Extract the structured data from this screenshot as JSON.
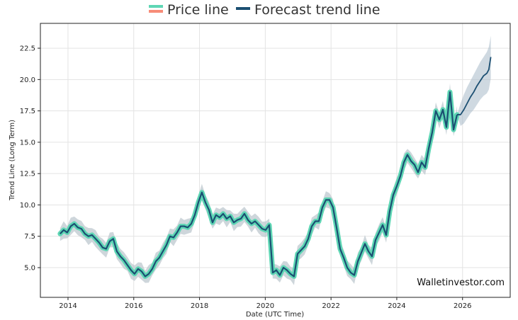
{
  "chart_data": {
    "type": "line",
    "title": "",
    "xlabel": "Date (UTC Time)",
    "ylabel": "Trend Line (Long Term)",
    "xlim": [
      2013.16,
      2027.45
    ],
    "ylim": [
      2.63,
      24.48
    ],
    "grid": true,
    "legend_placement": "top-center",
    "x_ticks": [
      2014,
      2016,
      2018,
      2020,
      2022,
      2024,
      2026
    ],
    "x_tick_labels": [
      "2014",
      "2016",
      "2018",
      "2020",
      "2022",
      "2024",
      "2026"
    ],
    "y_ticks": [
      5.0,
      7.5,
      10.0,
      12.5,
      15.0,
      17.5,
      20.0,
      22.5
    ],
    "y_tick_labels": [
      "5.0",
      "7.5",
      "10.0",
      "12.5",
      "15.0",
      "17.5",
      "20.0",
      "22.5"
    ],
    "legend": [
      {
        "label": "Price line",
        "colors": [
          "#5ed6b4",
          "#f78c78"
        ]
      },
      {
        "label": "Forecast trend line",
        "colors": [
          "#1b4f72"
        ]
      }
    ],
    "series": [
      {
        "name": "Price line",
        "x_start": 2013.76,
        "x_step": 0.1078,
        "values": [
          7.7,
          8.0,
          7.8,
          8.3,
          8.5,
          8.2,
          8.1,
          7.7,
          7.5,
          7.6,
          7.3,
          7.0,
          6.6,
          6.5,
          7.1,
          7.3,
          6.3,
          5.9,
          5.6,
          5.2,
          4.8,
          4.5,
          4.9,
          4.7,
          4.3,
          4.5,
          4.9,
          5.5,
          5.8,
          6.3,
          6.8,
          7.5,
          7.4,
          7.8,
          8.3,
          8.3,
          8.2,
          8.5,
          9.2,
          10.2,
          11.0,
          10.2,
          9.6,
          8.6,
          9.2,
          9.0,
          9.3,
          8.9,
          9.1,
          8.6,
          8.8,
          8.9,
          9.3,
          8.8,
          8.5,
          8.7,
          8.4,
          8.1,
          8.0,
          8.4,
          4.6,
          4.8,
          4.4,
          5.0,
          4.8,
          4.5,
          4.3,
          6.1,
          6.4,
          6.7,
          7.3,
          8.3,
          8.7,
          8.7,
          9.8,
          10.4,
          10.4,
          9.8,
          8.2,
          6.5,
          5.8,
          5.0,
          4.6,
          4.4,
          5.5,
          6.2,
          6.9,
          6.3,
          5.9,
          7.2,
          7.8,
          8.4,
          7.6,
          9.5,
          10.8,
          11.5,
          12.3,
          13.4,
          14.0,
          13.5,
          13.2,
          12.6,
          13.4,
          13.0,
          14.5,
          15.8,
          17.5,
          16.8,
          17.6,
          16.2,
          19.0,
          16.0,
          17.2
        ]
      },
      {
        "name": "Forecast trend line",
        "x": [
          2025.94,
          2026.04,
          2026.14,
          2026.24,
          2026.34,
          2026.44,
          2026.54,
          2026.64,
          2026.74,
          2026.8,
          2026.86
        ],
        "values": [
          17.2,
          17.6,
          18.1,
          18.6,
          19.0,
          19.5,
          19.9,
          20.3,
          20.5,
          20.8,
          21.8
        ],
        "lower": [
          16.3,
          16.5,
          16.9,
          17.3,
          17.6,
          18.0,
          18.4,
          18.7,
          18.9,
          19.2,
          20.1
        ],
        "upper": [
          18.1,
          18.8,
          19.4,
          19.9,
          20.4,
          20.9,
          21.4,
          21.8,
          22.2,
          22.6,
          23.5
        ]
      }
    ],
    "watermark": "Walletinvestor.com"
  }
}
